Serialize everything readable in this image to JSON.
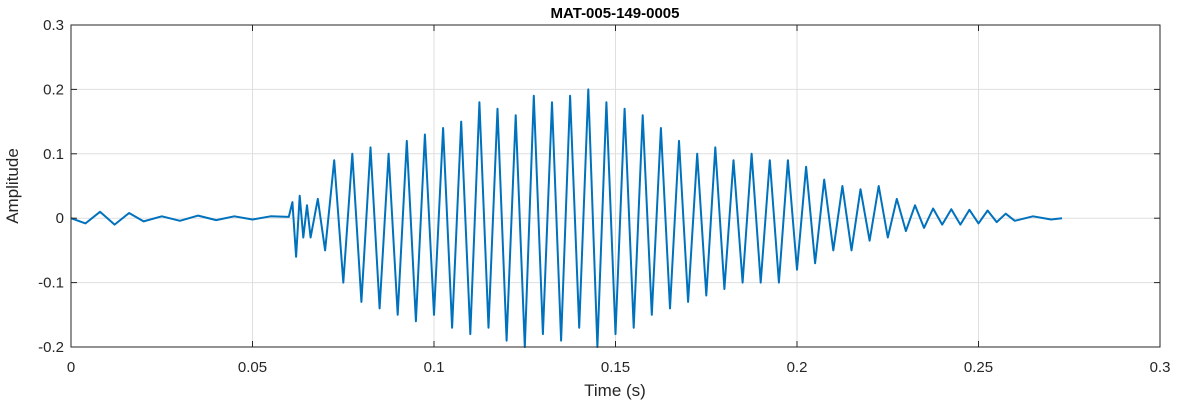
{
  "chart_data": {
    "type": "line",
    "title": "MAT-005-149-0005",
    "xlabel": "Time (s)",
    "ylabel": "Amplitude",
    "xlim": [
      0,
      0.3
    ],
    "ylim": [
      -0.2,
      0.3
    ],
    "xticks": [
      0,
      0.05,
      0.1,
      0.15,
      0.2,
      0.25,
      0.3
    ],
    "xtick_labels": [
      "0",
      "0.05",
      "0.1",
      "0.15",
      "0.2",
      "0.25",
      "0.3"
    ],
    "yticks": [
      -0.2,
      -0.1,
      0,
      0.1,
      0.2,
      0.3
    ],
    "ytick_labels": [
      "-0.2",
      "-0.1",
      "0",
      "0.1",
      "0.2",
      "0.3"
    ],
    "grid": true,
    "line_color": "#0072bd",
    "series": [
      {
        "x": [
          0.0,
          0.004,
          0.008,
          0.012,
          0.016,
          0.02,
          0.025,
          0.03,
          0.035,
          0.04,
          0.045,
          0.05,
          0.055,
          0.06,
          0.061,
          0.062,
          0.063,
          0.064,
          0.065,
          0.066,
          0.068,
          0.07,
          0.0725,
          0.075,
          0.0775,
          0.08,
          0.0825,
          0.085,
          0.0875,
          0.09,
          0.0925,
          0.095,
          0.0975,
          0.1,
          0.1025,
          0.105,
          0.1075,
          0.11,
          0.1125,
          0.115,
          0.1175,
          0.12,
          0.1225,
          0.125,
          0.1275,
          0.13,
          0.1325,
          0.135,
          0.1375,
          0.14,
          0.1425,
          0.145,
          0.1475,
          0.15,
          0.1525,
          0.155,
          0.1575,
          0.16,
          0.1625,
          0.165,
          0.1675,
          0.17,
          0.1725,
          0.175,
          0.1775,
          0.18,
          0.1825,
          0.185,
          0.1875,
          0.19,
          0.1925,
          0.195,
          0.1975,
          0.2,
          0.2025,
          0.205,
          0.2075,
          0.21,
          0.2125,
          0.215,
          0.2175,
          0.22,
          0.2225,
          0.225,
          0.2275,
          0.23,
          0.2325,
          0.235,
          0.2375,
          0.24,
          0.2425,
          0.245,
          0.2475,
          0.25,
          0.2525,
          0.255,
          0.2575,
          0.26,
          0.265,
          0.27,
          0.273
        ],
        "y": [
          0.0,
          -0.008,
          0.01,
          -0.01,
          0.008,
          -0.005,
          0.003,
          -0.004,
          0.004,
          -0.003,
          0.003,
          -0.002,
          0.003,
          0.002,
          0.025,
          -0.06,
          0.035,
          -0.03,
          0.02,
          -0.03,
          0.03,
          -0.05,
          0.09,
          -0.1,
          0.1,
          -0.13,
          0.11,
          -0.14,
          0.1,
          -0.15,
          0.12,
          -0.16,
          0.13,
          -0.15,
          0.14,
          -0.17,
          0.15,
          -0.18,
          0.18,
          -0.17,
          0.17,
          -0.19,
          0.16,
          -0.2,
          0.19,
          -0.18,
          0.18,
          -0.19,
          0.19,
          -0.17,
          0.2,
          -0.2,
          0.18,
          -0.18,
          0.17,
          -0.17,
          0.16,
          -0.15,
          0.14,
          -0.14,
          0.12,
          -0.13,
          0.1,
          -0.12,
          0.11,
          -0.11,
          0.09,
          -0.1,
          0.1,
          -0.1,
          0.09,
          -0.1,
          0.09,
          -0.08,
          0.08,
          -0.07,
          0.06,
          -0.05,
          0.05,
          -0.05,
          0.045,
          -0.035,
          0.05,
          -0.03,
          0.03,
          -0.02,
          0.02,
          -0.015,
          0.015,
          -0.01,
          0.014,
          -0.01,
          0.013,
          -0.008,
          0.012,
          -0.006,
          0.007,
          -0.004,
          0.003,
          -0.002,
          0.0
        ]
      }
    ]
  }
}
